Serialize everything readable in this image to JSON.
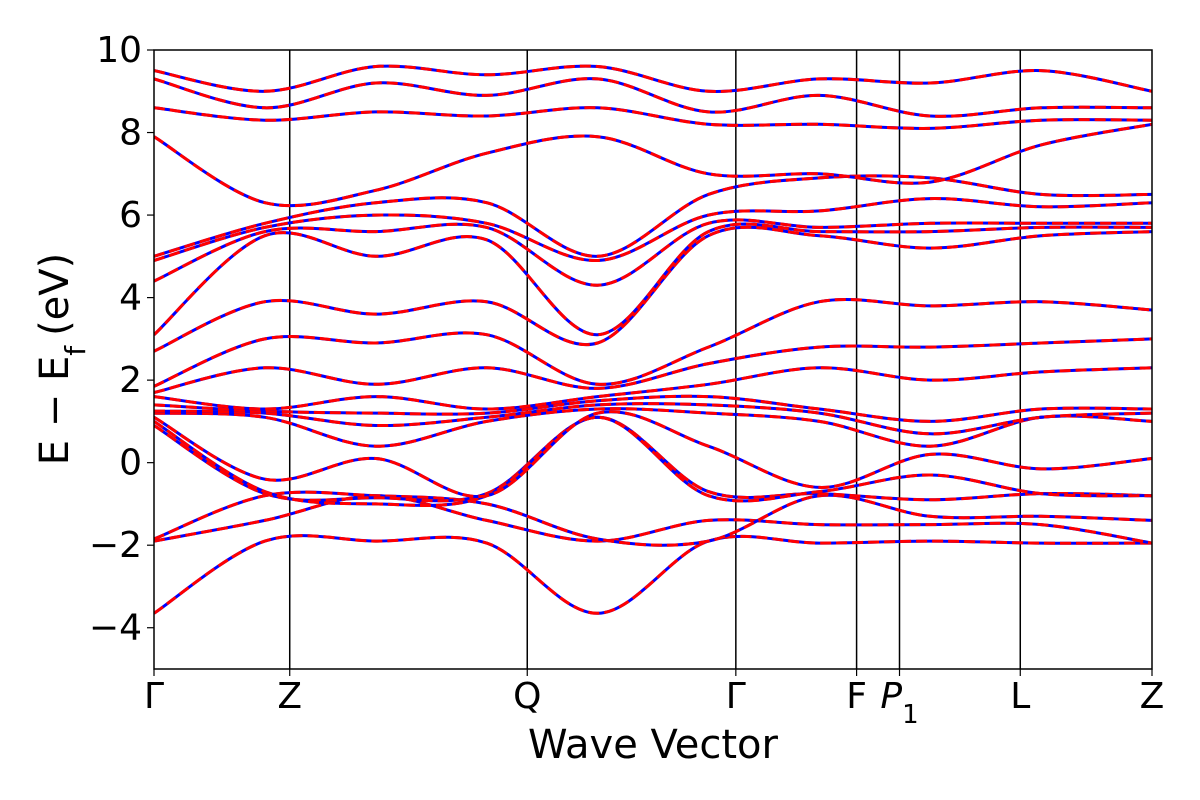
{
  "chart_data": {
    "type": "line",
    "xlabel": "Wave Vector",
    "ylabel": "E − E",
    "ylabel_sub": "f",
    "ylabel_unit": "(eV)",
    "ylim": [
      -5,
      10
    ],
    "yticks": [
      -4,
      -2,
      0,
      2,
      4,
      6,
      8,
      10
    ],
    "ytick_labels": [
      "−4",
      "−2",
      "0",
      "2",
      "4",
      "6",
      "8",
      "10"
    ],
    "kpath_ticks": [
      {
        "label": "Γ",
        "sub": "",
        "k": 0.0
      },
      {
        "label": "Z",
        "sub": "",
        "k": 0.136
      },
      {
        "label": "Q",
        "sub": "",
        "k": 0.374
      },
      {
        "label": "Γ",
        "sub": "",
        "k": 0.583
      },
      {
        "label": "F",
        "sub": "",
        "k": 0.704
      },
      {
        "label": "P",
        "sub": "1",
        "k": 0.747
      },
      {
        "label": "L",
        "sub": "",
        "k": 0.868
      },
      {
        "label": "Z",
        "sub": "",
        "k": 1.0
      }
    ],
    "grid": false,
    "series_styles": [
      {
        "color": "#0000ff",
        "style": "solid"
      },
      {
        "color": "#ff0000",
        "style": "dashed"
      }
    ],
    "bands": [
      [
        -3.65,
        -1.9,
        -1.9,
        -1.95,
        -3.65,
        -1.9,
        -1.95,
        -1.9,
        -1.95,
        -1.95
      ],
      [
        -1.9,
        -1.4,
        -0.8,
        -1.4,
        -1.9,
        -1.4,
        -1.5,
        -1.5,
        -1.5,
        -1.95
      ],
      [
        -1.85,
        -0.8,
        -0.8,
        -1.0,
        -1.85,
        -1.9,
        -0.8,
        -1.3,
        -1.3,
        -1.4
      ],
      [
        0.9,
        -0.75,
        -0.85,
        -0.75,
        1.1,
        -0.7,
        -0.75,
        -0.9,
        -0.75,
        -0.8
      ],
      [
        1.0,
        -0.7,
        -1.0,
        -0.8,
        1.1,
        -0.8,
        -0.7,
        -0.3,
        -0.75,
        -0.8
      ],
      [
        1.1,
        -0.4,
        0.1,
        -0.8,
        1.2,
        0.4,
        -0.6,
        0.2,
        -0.15,
        0.1
      ],
      [
        1.2,
        1.1,
        0.4,
        1.0,
        1.3,
        1.2,
        1.0,
        0.4,
        1.1,
        1.0
      ],
      [
        1.25,
        1.2,
        0.9,
        1.1,
        1.4,
        1.4,
        1.2,
        0.7,
        1.1,
        1.2
      ],
      [
        1.4,
        1.25,
        1.2,
        1.2,
        1.5,
        1.6,
        1.3,
        1.0,
        1.3,
        1.3
      ],
      [
        1.6,
        1.3,
        1.6,
        1.3,
        1.6,
        1.9,
        2.3,
        2.0,
        2.2,
        2.3
      ],
      [
        1.7,
        2.3,
        1.9,
        2.3,
        1.8,
        2.4,
        2.8,
        2.8,
        2.9,
        3.0
      ],
      [
        1.85,
        3.0,
        2.9,
        3.1,
        1.9,
        2.8,
        3.9,
        3.8,
        3.9,
        3.7
      ],
      [
        2.7,
        3.9,
        3.6,
        3.9,
        2.9,
        5.5,
        5.5,
        5.2,
        5.5,
        5.6
      ],
      [
        3.1,
        5.5,
        5.0,
        5.4,
        3.1,
        5.6,
        5.6,
        5.6,
        5.7,
        5.7
      ],
      [
        4.4,
        5.6,
        5.6,
        5.7,
        4.3,
        5.8,
        5.7,
        5.8,
        5.8,
        5.8
      ],
      [
        4.9,
        5.7,
        6.0,
        5.8,
        4.9,
        6.0,
        6.1,
        6.4,
        6.2,
        6.3
      ],
      [
        5.0,
        5.8,
        6.3,
        6.3,
        5.0,
        6.5,
        6.9,
        6.9,
        6.5,
        6.5
      ],
      [
        7.9,
        6.3,
        6.6,
        7.5,
        7.9,
        7.0,
        7.0,
        6.8,
        7.7,
        8.2
      ],
      [
        8.6,
        8.3,
        8.5,
        8.4,
        8.6,
        8.2,
        8.2,
        8.1,
        8.3,
        8.3
      ],
      [
        9.3,
        8.6,
        9.2,
        8.9,
        9.3,
        8.5,
        8.9,
        8.4,
        8.6,
        8.6
      ],
      [
        9.5,
        9.0,
        9.6,
        9.4,
        9.6,
        9.0,
        9.3,
        9.2,
        9.5,
        9.0
      ]
    ]
  }
}
